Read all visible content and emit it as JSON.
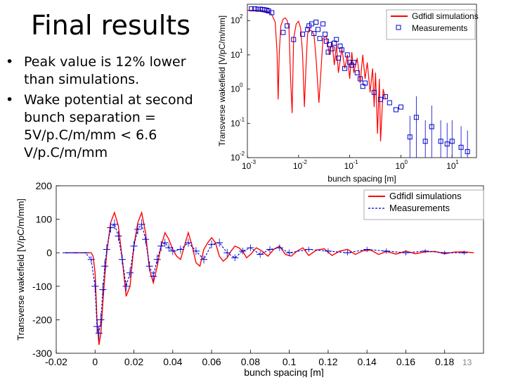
{
  "slide": {
    "title": "Final results",
    "bullets": [
      "Peak value is 12% lower than simulations.",
      "Wake potential at second bunch separation = 5V/p.C/m/mm < 6.6 V/p.C/m/mm"
    ],
    "bullet_symbol": "•",
    "page_number": "13"
  },
  "colors": {
    "simulation": "#ff0000",
    "measurement": "#0000cc"
  },
  "chart_data": [
    {
      "type": "line",
      "scale": "log-log",
      "title": "",
      "xlabel": "bunch spacing [m]",
      "ylabel": "Transverse wakefield [V/pC/m/mm]",
      "xlim": [
        0.001,
        30
      ],
      "ylim": [
        0.01,
        300
      ],
      "x_ticks": [
        0.001,
        0.01,
        0.1,
        1,
        10
      ],
      "x_tick_labels": [
        "10",
        "10",
        "10",
        "10",
        "10"
      ],
      "x_tick_exponents": [
        "-3",
        "-2",
        "-1",
        "0",
        "1"
      ],
      "y_ticks": [
        0.01,
        0.1,
        1,
        10,
        100
      ],
      "y_tick_labels": [
        "10",
        "10",
        "10",
        "10",
        "10"
      ],
      "y_tick_exponents": [
        "-2",
        "-1",
        "0",
        "1",
        "2"
      ],
      "grid": false,
      "legend_position": "top-right",
      "series": [
        {
          "name": "Gdfidl simulations",
          "style": "line",
          "x": [
            0.001,
            0.0015,
            0.002,
            0.0025,
            0.003,
            0.0035,
            0.0038,
            0.004,
            0.0042,
            0.0045,
            0.005,
            0.0055,
            0.006,
            0.0065,
            0.007,
            0.0075,
            0.008,
            0.009,
            0.01,
            0.011,
            0.012,
            0.013,
            0.014,
            0.015,
            0.016,
            0.018,
            0.02,
            0.022,
            0.025,
            0.03,
            0.035,
            0.04,
            0.045,
            0.05,
            0.055,
            0.06,
            0.07,
            0.08,
            0.09,
            0.1,
            0.11,
            0.12,
            0.14,
            0.16,
            0.18,
            0.2,
            0.22,
            0.25,
            0.28,
            0.3,
            0.32,
            0.35,
            0.38,
            0.4,
            0.45,
            0.5
          ],
          "y": [
            200,
            200,
            195,
            185,
            150,
            90,
            12,
            0.5,
            12,
            70,
            110,
            120,
            100,
            60,
            2,
            0.2,
            30,
            80,
            95,
            60,
            10,
            0.3,
            5,
            40,
            55,
            50,
            40,
            8,
            0.4,
            30,
            35,
            10,
            25,
            5,
            20,
            3,
            15,
            4,
            10,
            2,
            12,
            3,
            8,
            1.5,
            10,
            2,
            6,
            0.8,
            4,
            0.3,
            3,
            0.05,
            2,
            0.03,
            1,
            0.5
          ]
        },
        {
          "name": "Measurements",
          "style": "markers",
          "x": [
            0.0012,
            0.0014,
            0.0016,
            0.0018,
            0.002,
            0.0022,
            0.0024,
            0.0026,
            0.003,
            0.005,
            0.006,
            0.008,
            0.012,
            0.015,
            0.016,
            0.018,
            0.02,
            0.022,
            0.024,
            0.026,
            0.03,
            0.033,
            0.035,
            0.038,
            0.04,
            0.045,
            0.05,
            0.055,
            0.06,
            0.065,
            0.07,
            0.08,
            0.09,
            0.1,
            0.11,
            0.12,
            0.14,
            0.16,
            0.18,
            0.2,
            0.3,
            0.4,
            0.5,
            0.6,
            0.8,
            1.0,
            1.5,
            2.0,
            3.0,
            4.0,
            6.0,
            8.0,
            10.0,
            15.0,
            20.0
          ],
          "y": [
            220,
            220,
            215,
            215,
            210,
            205,
            200,
            190,
            170,
            45,
            70,
            28,
            40,
            55,
            70,
            80,
            42,
            90,
            55,
            30,
            80,
            40,
            25,
            12,
            20,
            15,
            22,
            28,
            8,
            18,
            14,
            4,
            10,
            6,
            5,
            6,
            3,
            2,
            1.2,
            1.5,
            0.8,
            0.5,
            0.6,
            0.4,
            0.25,
            0.3,
            0.04,
            0.15,
            0.03,
            0.08,
            0.03,
            0.025,
            0.03,
            0.02,
            0.015
          ]
        }
      ]
    },
    {
      "type": "line",
      "title": "",
      "xlabel": "bunch spacing [m]",
      "ylabel": "Transverse wakefield [V/pC/m/mm]",
      "xlim": [
        -0.02,
        0.2
      ],
      "ylim": [
        -300,
        200
      ],
      "x_ticks": [
        -0.02,
        0,
        0.02,
        0.04,
        0.06,
        0.08,
        0.1,
        0.12,
        0.14,
        0.16,
        0.18
      ],
      "x_tick_labels": [
        "-0.02",
        "0",
        "0.02",
        "0.04",
        "0.06",
        "0.08",
        "0.1",
        "0.12",
        "0.14",
        "0.16",
        "0.18"
      ],
      "y_ticks": [
        -300,
        -200,
        -100,
        0,
        100,
        200
      ],
      "y_tick_labels": [
        "-300",
        "-200",
        "-100",
        "0",
        "100",
        "200"
      ],
      "grid": false,
      "legend_position": "top-right",
      "series": [
        {
          "name": "Gdfidl simulations",
          "style": "line",
          "x": [
            -0.015,
            -0.002,
            -0.001,
            0,
            0.001,
            0.002,
            0.003,
            0.004,
            0.005,
            0.006,
            0.008,
            0.01,
            0.012,
            0.014,
            0.016,
            0.018,
            0.02,
            0.022,
            0.024,
            0.026,
            0.028,
            0.03,
            0.032,
            0.034,
            0.036,
            0.038,
            0.04,
            0.042,
            0.044,
            0.046,
            0.048,
            0.05,
            0.052,
            0.054,
            0.056,
            0.058,
            0.06,
            0.062,
            0.064,
            0.066,
            0.068,
            0.07,
            0.072,
            0.074,
            0.076,
            0.078,
            0.08,
            0.083,
            0.086,
            0.089,
            0.092,
            0.095,
            0.098,
            0.101,
            0.104,
            0.107,
            0.11,
            0.114,
            0.118,
            0.122,
            0.126,
            0.13,
            0.134,
            0.138,
            0.142,
            0.146,
            0.15,
            0.155,
            0.16,
            0.165,
            0.17,
            0.175,
            0.18,
            0.185,
            0.19,
            0.195
          ],
          "y": [
            0,
            0,
            -10,
            -60,
            -200,
            -275,
            -240,
            -150,
            -70,
            0,
            90,
            120,
            80,
            -20,
            -130,
            -100,
            20,
            90,
            120,
            60,
            -50,
            -90,
            -40,
            20,
            60,
            40,
            10,
            -10,
            -20,
            20,
            60,
            20,
            -30,
            -40,
            10,
            30,
            45,
            30,
            -10,
            -25,
            -15,
            5,
            20,
            15,
            5,
            -15,
            -5,
            15,
            5,
            -10,
            10,
            20,
            -5,
            -10,
            5,
            15,
            -8,
            8,
            12,
            -8,
            5,
            10,
            -5,
            6,
            8,
            -5,
            4,
            -4,
            5,
            -3,
            3,
            4,
            -3,
            2,
            3,
            0
          ],
          "color": "#ff0000"
        },
        {
          "name": "Measurements",
          "style": "dashed-errorbars",
          "x": [
            -0.015,
            -0.01,
            -0.005,
            -0.002,
            0,
            0.001,
            0.002,
            0.003,
            0.004,
            0.005,
            0.006,
            0.008,
            0.01,
            0.012,
            0.014,
            0.016,
            0.018,
            0.02,
            0.022,
            0.024,
            0.026,
            0.028,
            0.03,
            0.032,
            0.034,
            0.036,
            0.038,
            0.04,
            0.044,
            0.048,
            0.052,
            0.056,
            0.06,
            0.064,
            0.068,
            0.072,
            0.076,
            0.08,
            0.085,
            0.09,
            0.095,
            0.1,
            0.11,
            0.12,
            0.13,
            0.14,
            0.15,
            0.16,
            0.17,
            0.18,
            0.19
          ],
          "y": [
            0,
            0,
            0,
            -20,
            -100,
            -220,
            -240,
            -200,
            -110,
            -40,
            10,
            75,
            85,
            50,
            -20,
            -100,
            -60,
            20,
            70,
            85,
            40,
            -40,
            -70,
            -20,
            20,
            30,
            15,
            5,
            10,
            30,
            5,
            -20,
            25,
            30,
            0,
            -15,
            5,
            15,
            -5,
            10,
            15,
            0,
            10,
            5,
            0,
            10,
            5,
            0,
            5,
            0,
            0
          ],
          "err": [
            2,
            2,
            2,
            10,
            20,
            20,
            20,
            20,
            20,
            20,
            15,
            15,
            15,
            15,
            15,
            15,
            15,
            15,
            15,
            15,
            15,
            15,
            15,
            15,
            15,
            12,
            12,
            12,
            12,
            12,
            12,
            12,
            12,
            12,
            12,
            10,
            10,
            10,
            10,
            10,
            10,
            10,
            8,
            8,
            8,
            8,
            8,
            8,
            6,
            6,
            6
          ],
          "color": "#0000cc"
        }
      ]
    }
  ]
}
